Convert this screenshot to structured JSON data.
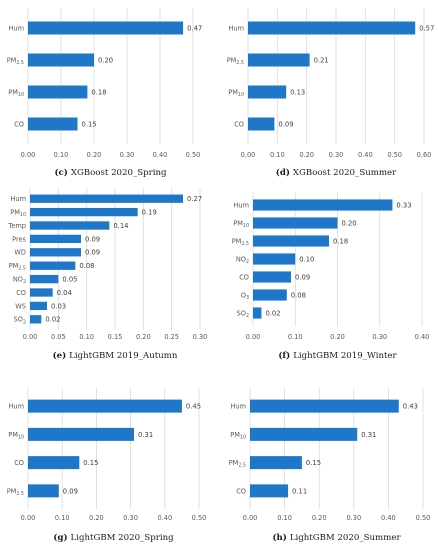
{
  "colors": {
    "bar": "#1f77c9",
    "grid": "#d9d9d9",
    "text": "#595959",
    "caption": "#1a1a1a"
  },
  "chart_data": [
    {
      "type": "bar",
      "orientation": "horizontal",
      "caption_letter": "(c)",
      "caption_text": "XGBoost 2020_Spring",
      "categories": [
        [
          "Hum"
        ],
        [
          "PM",
          "2.5"
        ],
        [
          "PM",
          "10"
        ],
        [
          "CO"
        ]
      ],
      "values": [
        0.47,
        0.2,
        0.18,
        0.15
      ],
      "value_labels": [
        "0.47",
        "0.20",
        "0.18",
        "0.15"
      ],
      "xlim": [
        0,
        0.5
      ],
      "xticks": [
        "0.00",
        "0.10",
        "0.20",
        "0.30",
        "0.40",
        "0.50"
      ],
      "grid": true,
      "legend": "none"
    },
    {
      "type": "bar",
      "orientation": "horizontal",
      "caption_letter": "(d)",
      "caption_text": "XGBoost 2020_Summer",
      "categories": [
        [
          "Hum"
        ],
        [
          "PM",
          "2.5"
        ],
        [
          "PM",
          "10"
        ],
        [
          "CO"
        ]
      ],
      "values": [
        0.57,
        0.21,
        0.13,
        0.09
      ],
      "value_labels": [
        "0.57",
        "0.21",
        "0.13",
        "0.09"
      ],
      "xlim": [
        0,
        0.6
      ],
      "xticks": [
        "0.00",
        "0.10",
        "0.20",
        "0.30",
        "0.40",
        "0.50",
        "0.60"
      ],
      "grid": true,
      "legend": "none"
    },
    {
      "type": "bar",
      "orientation": "horizontal",
      "caption_letter": "(e)",
      "caption_text": "LightGBM 2019_Autumn",
      "categories": [
        [
          "Hum"
        ],
        [
          "PM",
          "10"
        ],
        [
          "Temp"
        ],
        [
          "Pres"
        ],
        [
          "WD"
        ],
        [
          "PM",
          "2.5"
        ],
        [
          "NO",
          "2"
        ],
        [
          "CO"
        ],
        [
          "WS"
        ],
        [
          "SO",
          "2"
        ]
      ],
      "values": [
        0.27,
        0.19,
        0.14,
        0.09,
        0.09,
        0.08,
        0.05,
        0.04,
        0.03,
        0.02
      ],
      "value_labels": [
        "0.27",
        "0.19",
        "0.14",
        "0.09",
        "0.09",
        "0.08",
        "0.05",
        "0.04",
        "0.03",
        "0.02"
      ],
      "xlim": [
        0,
        0.3
      ],
      "xticks": [
        "0.00",
        "0.05",
        "0.10",
        "0.15",
        "0.20",
        "0.25",
        "0.30"
      ],
      "grid": true,
      "legend": "none"
    },
    {
      "type": "bar",
      "orientation": "horizontal",
      "caption_letter": "(f)",
      "caption_text": "LightGBM 2019_Winter",
      "categories": [
        [
          "Hum"
        ],
        [
          "PM",
          "10"
        ],
        [
          "PM",
          "2.5"
        ],
        [
          "NO",
          "2"
        ],
        [
          "CO"
        ],
        [
          "O",
          "3"
        ],
        [
          "SO",
          "2"
        ]
      ],
      "values": [
        0.33,
        0.2,
        0.18,
        0.1,
        0.09,
        0.08,
        0.02
      ],
      "value_labels": [
        "0.33",
        "0.20",
        "0.18",
        "0.10",
        "0.09",
        "0.08",
        "0.02"
      ],
      "xlim": [
        0,
        0.4
      ],
      "xticks": [
        "0.00",
        "0.10",
        "0.20",
        "0.30",
        "0.40"
      ],
      "grid": true,
      "legend": "none"
    },
    {
      "type": "bar",
      "orientation": "horizontal",
      "caption_letter": "(g)",
      "caption_text": "LightGBM 2020_Spring",
      "categories": [
        [
          "Hum"
        ],
        [
          "PM",
          "10"
        ],
        [
          "CO"
        ],
        [
          "PM",
          "2.5"
        ]
      ],
      "values": [
        0.45,
        0.31,
        0.15,
        0.09
      ],
      "value_labels": [
        "0.45",
        "0.31",
        "0.15",
        "0.09"
      ],
      "xlim": [
        0,
        0.5
      ],
      "xticks": [
        "0.00",
        "0.10",
        "0.20",
        "0.30",
        "0.40",
        "0.50"
      ],
      "grid": true,
      "legend": "none"
    },
    {
      "type": "bar",
      "orientation": "horizontal",
      "caption_letter": "(h)",
      "caption_text": "LightGBM 2020_Summer",
      "categories": [
        [
          "Hum"
        ],
        [
          "PM",
          "10"
        ],
        [
          "PM",
          "2.5"
        ],
        [
          "CO"
        ]
      ],
      "values": [
        0.43,
        0.31,
        0.15,
        0.11
      ],
      "value_labels": [
        "0.43",
        "0.31",
        "0.15",
        "0.11"
      ],
      "xlim": [
        0,
        0.5
      ],
      "xticks": [
        "0.00",
        "0.10",
        "0.20",
        "0.30",
        "0.40",
        "0.50"
      ],
      "grid": true,
      "legend": "none"
    }
  ]
}
